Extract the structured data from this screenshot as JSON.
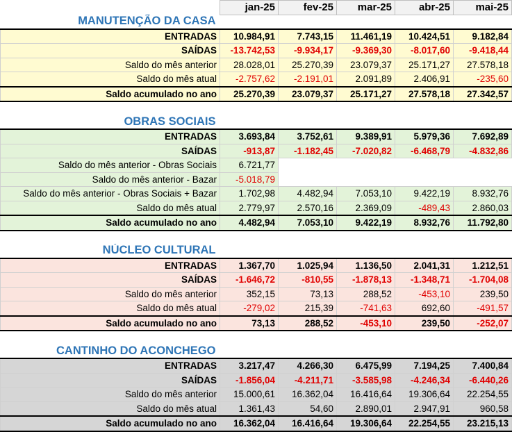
{
  "months": [
    "jan-25",
    "fev-25",
    "mar-25",
    "abr-25",
    "mai-25"
  ],
  "sections": [
    {
      "title": "MANUTENÇÃO DA CASA",
      "rows": [
        {
          "label": "ENTRADAS",
          "values": [
            "10.984,91",
            "7.743,15",
            "11.461,19",
            "10.424,51",
            "9.182,84"
          ]
        },
        {
          "label": "SAÍDAS",
          "values": [
            "-13.742,53",
            "-9.934,17",
            "-9.369,30",
            "-8.017,60",
            "-9.418,44"
          ]
        },
        {
          "label": "Saldo do mês anterior",
          "values": [
            "28.028,01",
            "25.270,39",
            "23.079,37",
            "25.171,27",
            "27.578,18"
          ]
        },
        {
          "label": "Saldo do mês atual",
          "values": [
            "-2.757,62",
            "-2.191,01",
            "2.091,89",
            "2.406,91",
            "-235,60"
          ]
        },
        {
          "label": "Saldo acumulado no ano",
          "values": [
            "25.270,39",
            "23.079,37",
            "25.171,27",
            "27.578,18",
            "27.342,57"
          ]
        }
      ]
    },
    {
      "title": "OBRAS SOCIAIS",
      "rows": [
        {
          "label": "ENTRADAS",
          "values": [
            "3.693,84",
            "3.752,61",
            "9.389,91",
            "5.979,36",
            "7.692,89"
          ]
        },
        {
          "label": "SAÍDAS",
          "values": [
            "-913,87",
            "-1.182,45",
            "-7.020,82",
            "-6.468,79",
            "-4.832,86"
          ]
        },
        {
          "label": "Saldo do mês anterior - Obras  Sociais",
          "values": [
            "6.721,77",
            "",
            "",
            "",
            ""
          ]
        },
        {
          "label": "Saldo do mês anterior - Bazar",
          "values": [
            "-5.018,79",
            "",
            "",
            "",
            ""
          ]
        },
        {
          "label": "Saldo do mês anterior - Obras Sociais + Bazar",
          "values": [
            "1.702,98",
            "4.482,94",
            "7.053,10",
            "9.422,19",
            "8.932,76"
          ]
        },
        {
          "label": "Saldo do mês atual",
          "values": [
            "2.779,97",
            "2.570,16",
            "2.369,09",
            "-489,43",
            "2.860,03"
          ]
        },
        {
          "label": "Saldo acumulado no ano",
          "values": [
            "4.482,94",
            "7.053,10",
            "9.422,19",
            "8.932,76",
            "11.792,80"
          ]
        }
      ]
    },
    {
      "title": "NÚCLEO CULTURAL",
      "rows": [
        {
          "label": "ENTRADAS",
          "values": [
            "1.367,70",
            "1.025,94",
            "1.136,50",
            "2.041,31",
            "1.212,51"
          ]
        },
        {
          "label": "SAÍDAS",
          "values": [
            "-1.646,72",
            "-810,55",
            "-1.878,13",
            "-1.348,71",
            "-1.704,08"
          ]
        },
        {
          "label": "Saldo do mês anterior",
          "values": [
            "352,15",
            "73,13",
            "288,52",
            "-453,10",
            "239,50"
          ]
        },
        {
          "label": "Saldo do mês atual",
          "values": [
            "-279,02",
            "215,39",
            "-741,63",
            "692,60",
            "-491,57"
          ]
        },
        {
          "label": "Saldo acumulado no ano",
          "values": [
            "73,13",
            "288,52",
            "-453,10",
            "239,50",
            "-252,07"
          ]
        }
      ]
    },
    {
      "title": "CANTINHO DO ACONCHEGO",
      "rows": [
        {
          "label": "ENTRADAS",
          "values": [
            "3.217,47",
            "4.266,30",
            "6.475,99",
            "7.194,25",
            "7.400,84"
          ]
        },
        {
          "label": "SAÍDAS",
          "values": [
            "-1.856,04",
            "-4.211,71",
            "-3.585,98",
            "-4.246,34",
            "-6.440,26"
          ]
        },
        {
          "label": "Saldo do mês anterior",
          "values": [
            "15.000,61",
            "16.362,04",
            "16.416,64",
            "19.306,64",
            "22.254,55"
          ]
        },
        {
          "label": "Saldo do mês atual",
          "values": [
            "1.361,43",
            "54,60",
            "2.890,01",
            "2.947,91",
            "960,58"
          ]
        },
        {
          "label": "Saldo acumulado no ano",
          "values": [
            "16.362,04",
            "16.416,64",
            "19.306,64",
            "22.254,55",
            "23.215,13"
          ]
        }
      ]
    }
  ],
  "colors": {
    "title": "#2e75b6",
    "negative": "#e00000",
    "manutencao_bg": "#fffbd1",
    "obras_bg": "#e3f3d9",
    "nucleo_bg": "#fbe4de",
    "cantinho_bg": "#d6d6d6"
  }
}
